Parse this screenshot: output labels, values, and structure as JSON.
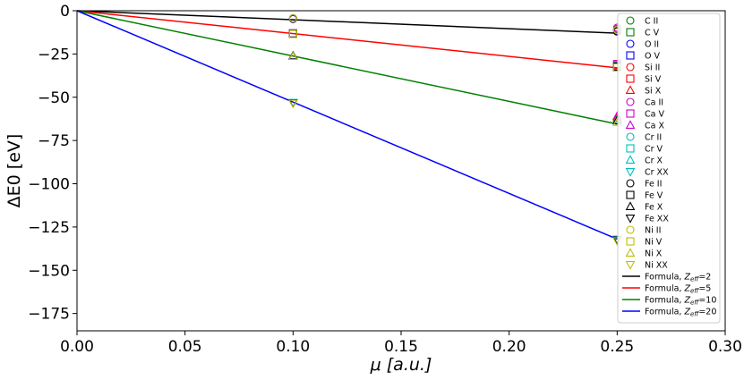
{
  "chart_data": {
    "type": "scatter",
    "xlabel": "μ [a.u.]",
    "ylabel": "ΔE0 [eV]",
    "xlim": [
      0.0,
      0.3
    ],
    "ylim": [
      -185,
      0
    ],
    "xticks": [
      0.0,
      0.05,
      0.1,
      0.15,
      0.2,
      0.25,
      0.3
    ],
    "xtick_labels": [
      "0.00",
      "0.05",
      "0.10",
      "0.15",
      "0.20",
      "0.25",
      "0.30"
    ],
    "yticks": [
      0,
      -25,
      -50,
      -75,
      -100,
      -125,
      -150,
      -175
    ],
    "ytick_labels": [
      "0",
      "−25",
      "−50",
      "−75",
      "−100",
      "−125",
      "−150",
      "−175"
    ],
    "grid": false,
    "legend_position": "right",
    "lines": [
      {
        "name": "Formula, Z_eff=2",
        "label_prefix": "Formula, ",
        "label_z": "Z",
        "label_sub": "eff",
        "label_eq": "=2",
        "color": "#000000",
        "x": [
          0.0,
          0.25
        ],
        "y": [
          0,
          -13
        ]
      },
      {
        "name": "Formula, Z_eff=5",
        "label_prefix": "Formula, ",
        "label_z": "Z",
        "label_sub": "eff",
        "label_eq": "=5",
        "color": "#ff0000",
        "x": [
          0.0,
          0.25
        ],
        "y": [
          0,
          -33
        ]
      },
      {
        "name": "Formula, Z_eff=10",
        "label_prefix": "Formula, ",
        "label_z": "Z",
        "label_sub": "eff",
        "label_eq": "=10",
        "color": "#008000",
        "x": [
          0.0,
          0.25
        ],
        "y": [
          0,
          -65.5
        ]
      },
      {
        "name": "Formula, Z_eff=20",
        "label_prefix": "Formula, ",
        "label_z": "Z",
        "label_sub": "eff",
        "label_eq": "=20",
        "color": "#0000ff",
        "x": [
          0.0,
          0.25
        ],
        "y": [
          0,
          -132
        ]
      }
    ],
    "series": [
      {
        "name": "C II",
        "marker": "circle",
        "color": "#008000",
        "x": [
          0.1,
          0.25
        ],
        "y": [
          -4.5,
          -11.5
        ]
      },
      {
        "name": "C V",
        "marker": "square",
        "color": "#008000",
        "x": [
          0.1,
          0.25
        ],
        "y": [
          -13.2,
          -32.5
        ]
      },
      {
        "name": "O II",
        "marker": "circle",
        "color": "#0000ff",
        "x": [
          0.1,
          0.25
        ],
        "y": [
          -4.8,
          -11.5
        ]
      },
      {
        "name": "O V",
        "marker": "square",
        "color": "#0000ff",
        "x": [
          0.1,
          0.25
        ],
        "y": [
          -13.3,
          -32.7
        ]
      },
      {
        "name": "Si II",
        "marker": "circle",
        "color": "#ff0000",
        "x": [
          0.1,
          0.25
        ],
        "y": [
          -4.5,
          -10.5
        ]
      },
      {
        "name": "Si V",
        "marker": "square",
        "color": "#ff0000",
        "x": [
          0.1,
          0.25
        ],
        "y": [
          -13.2,
          -31.5
        ]
      },
      {
        "name": "Si X",
        "marker": "triangle-up",
        "color": "#ff0000",
        "x": [
          0.1,
          0.25
        ],
        "y": [
          -26.2,
          -62
        ]
      },
      {
        "name": "Ca II",
        "marker": "circle",
        "color": "#cc00cc",
        "x": [
          0.1,
          0.25
        ],
        "y": [
          -4.3,
          -9.8
        ]
      },
      {
        "name": "Ca V",
        "marker": "square",
        "color": "#cc00cc",
        "x": [
          0.1,
          0.25
        ],
        "y": [
          -13.0,
          -30.8
        ]
      },
      {
        "name": "Ca X",
        "marker": "triangle-up",
        "color": "#cc00cc",
        "x": [
          0.1,
          0.25
        ],
        "y": [
          -26.0,
          -61
        ]
      },
      {
        "name": "Cr II",
        "marker": "circle",
        "color": "#00bfbf",
        "x": [
          0.1,
          0.25
        ],
        "y": [
          -4.4,
          -11.0
        ]
      },
      {
        "name": "Cr V",
        "marker": "square",
        "color": "#00bfbf",
        "x": [
          0.1,
          0.25
        ],
        "y": [
          -13.1,
          -32.0
        ]
      },
      {
        "name": "Cr X",
        "marker": "triangle-up",
        "color": "#00bfbf",
        "x": [
          0.1,
          0.25
        ],
        "y": [
          -26.1,
          -63
        ]
      },
      {
        "name": "Cr XX",
        "marker": "triangle-down",
        "color": "#00bfbf",
        "x": [
          0.1,
          0.25
        ],
        "y": [
          -53.0,
          -132
        ]
      },
      {
        "name": "Fe II",
        "marker": "circle",
        "color": "#000000",
        "x": [
          0.1,
          0.25
        ],
        "y": [
          -4.6,
          -12.0
        ]
      },
      {
        "name": "Fe V",
        "marker": "square",
        "color": "#000000",
        "x": [
          0.1,
          0.25
        ],
        "y": [
          -13.2,
          -32.3
        ]
      },
      {
        "name": "Fe X",
        "marker": "triangle-up",
        "color": "#000000",
        "x": [
          0.1,
          0.25
        ],
        "y": [
          -26.2,
          -63.5
        ]
      },
      {
        "name": "Fe XX",
        "marker": "triangle-down",
        "color": "#000000",
        "x": [
          0.1,
          0.25
        ],
        "y": [
          -53.3,
          -132.5
        ]
      },
      {
        "name": "Ni II",
        "marker": "circle",
        "color": "#bfbf00",
        "x": [
          0.1,
          0.25
        ],
        "y": [
          -4.4,
          -11.2
        ]
      },
      {
        "name": "Ni V",
        "marker": "square",
        "color": "#bfbf00",
        "x": [
          0.1,
          0.25
        ],
        "y": [
          -13.4,
          -32.8
        ]
      },
      {
        "name": "Ni X",
        "marker": "triangle-up",
        "color": "#bfbf00",
        "x": [
          0.1,
          0.25
        ],
        "y": [
          -26.4,
          -64.5
        ]
      },
      {
        "name": "Ni XX",
        "marker": "triangle-down",
        "color": "#bfbf00",
        "x": [
          0.1,
          0.25
        ],
        "y": [
          -53.5,
          -133
        ]
      }
    ]
  }
}
